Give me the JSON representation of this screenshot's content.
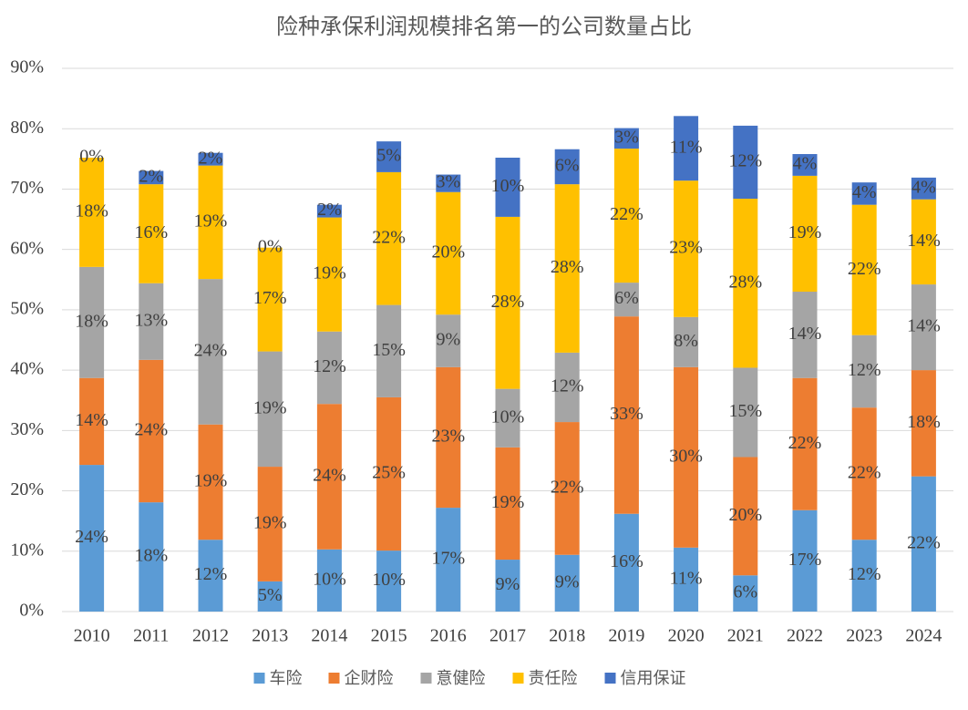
{
  "chart_data": {
    "type": "stacked_bar",
    "title": "险种承保利润规模排名第一的公司数量占比",
    "categories": [
      "2010",
      "2011",
      "2012",
      "2013",
      "2014",
      "2015",
      "2016",
      "2017",
      "2018",
      "2019",
      "2020",
      "2021",
      "2022",
      "2023",
      "2024"
    ],
    "series": [
      {
        "name": "车险",
        "color": "#5b9bd5",
        "values": [
          24.3,
          18.1,
          11.9,
          5.0,
          10.3,
          10.1,
          17.2,
          8.6,
          9.4,
          16.2,
          10.6,
          6.0,
          16.8,
          11.9,
          22.4
        ],
        "value_labels": [
          "24%",
          "18%",
          "12%",
          "5%",
          "10%",
          "10%",
          "17%",
          "9%",
          "9%",
          "16%",
          "11%",
          "6%",
          "17%",
          "12%",
          "22%"
        ]
      },
      {
        "name": "企财险",
        "color": "#ed7d31",
        "values": [
          14.4,
          23.6,
          19.1,
          19.0,
          24.1,
          25.4,
          23.3,
          18.6,
          22.0,
          32.7,
          29.9,
          19.6,
          21.9,
          21.9,
          17.6
        ],
        "value_labels": [
          "14%",
          "24%",
          "19%",
          "19%",
          "24%",
          "25%",
          "23%",
          "19%",
          "22%",
          "33%",
          "30%",
          "20%",
          "22%",
          "22%",
          "18%"
        ]
      },
      {
        "name": "意健险",
        "color": "#a5a5a5",
        "values": [
          18.4,
          12.7,
          24.1,
          19.1,
          12.0,
          15.3,
          8.7,
          9.7,
          11.5,
          5.6,
          8.3,
          14.8,
          14.3,
          12.0,
          14.2
        ],
        "value_labels": [
          "18%",
          "13%",
          "24%",
          "19%",
          "12%",
          "15%",
          "9%",
          "10%",
          "12%",
          "6%",
          "8%",
          "15%",
          "14%",
          "12%",
          "14%"
        ]
      },
      {
        "name": "责任险",
        "color": "#ffc000",
        "values": [
          18.1,
          16.4,
          18.8,
          17.2,
          18.9,
          22.0,
          20.3,
          28.5,
          27.9,
          22.2,
          22.6,
          28.0,
          19.2,
          21.6,
          14.1
        ],
        "value_labels": [
          "18%",
          "16%",
          "19%",
          "17%",
          "19%",
          "22%",
          "20%",
          "28%",
          "28%",
          "22%",
          "23%",
          "28%",
          "19%",
          "22%",
          "14%"
        ]
      },
      {
        "name": "信用保证",
        "color": "#4472c4",
        "values": [
          0,
          2.2,
          2.1,
          0,
          2.1,
          5.1,
          2.9,
          9.8,
          5.8,
          3.4,
          10.7,
          12.1,
          3.6,
          3.7,
          3.6
        ],
        "value_labels": [
          "0%",
          "2%",
          "2%",
          "0%",
          "2%",
          "5%",
          "3%",
          "10%",
          "6%",
          "3%",
          "11%",
          "12%",
          "4%",
          "4%",
          "4%"
        ]
      }
    ],
    "ylim": [
      0,
      90
    ],
    "yticks": [
      {
        "value": 0,
        "label": "0%"
      },
      {
        "value": 10,
        "label": "10%"
      },
      {
        "value": 20,
        "label": "20%"
      },
      {
        "value": 30,
        "label": "30%"
      },
      {
        "value": 40,
        "label": "40%"
      },
      {
        "value": 50,
        "label": "50%"
      },
      {
        "value": 60,
        "label": "60%"
      },
      {
        "value": 70,
        "label": "70%"
      },
      {
        "value": 80,
        "label": "80%"
      },
      {
        "value": 90,
        "label": "90%"
      }
    ],
    "grid": true,
    "legend": "bottom"
  }
}
